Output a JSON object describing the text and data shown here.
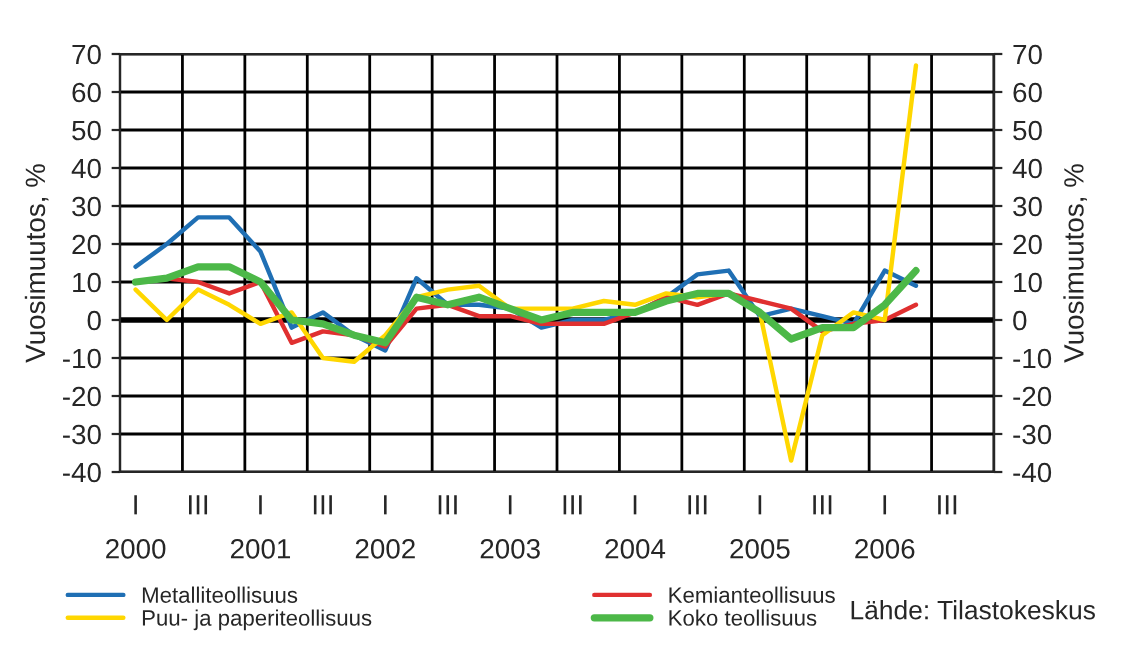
{
  "chart_data": {
    "type": "line",
    "ylabel": "Vuosimuutos, %",
    "y2label": "Vuosimuutos, %",
    "categories": [
      "I\n2000",
      null,
      "III",
      null,
      "I\n2001",
      null,
      "III",
      null,
      "I\n2002",
      null,
      "III",
      null,
      "I\n2003",
      null,
      "III",
      null,
      "I\n2004",
      null,
      "III",
      null,
      "I\n2005",
      null,
      "III",
      null,
      "I\n2006",
      null,
      "III",
      null
    ],
    "series": [
      {
        "name": "Metalliteollisuus",
        "color": "#1f6fb4",
        "values": [
          14,
          20,
          27,
          27,
          18,
          -2,
          2,
          -4,
          -8,
          11,
          4,
          4,
          3,
          -2,
          0,
          0,
          2,
          6,
          12,
          13,
          1,
          3,
          1,
          -1,
          13,
          9,
          null,
          null
        ]
      },
      {
        "name": "Kemianteollisuus",
        "color": "#e03030",
        "values": [
          10,
          11,
          10,
          7,
          10,
          -6,
          -3,
          -4,
          -7,
          3,
          4,
          1,
          1,
          -1,
          -1,
          -1,
          2,
          6,
          4,
          7,
          5,
          3,
          -3,
          -1,
          0,
          4,
          null,
          null
        ]
      },
      {
        "name": "Puu- ja paperiteollisuus",
        "color": "#ffd700",
        "values": [
          8,
          0,
          8,
          4,
          -1,
          2,
          -10,
          -11,
          -4,
          6,
          8,
          9,
          3,
          3,
          3,
          5,
          4,
          7,
          6,
          7,
          2,
          -37,
          -4,
          2,
          0,
          67,
          null,
          null
        ]
      },
      {
        "name": "Koko teollisuus",
        "color": "#4cb848",
        "values": [
          10,
          11,
          14,
          14,
          10,
          0,
          -1,
          -4,
          -6,
          6,
          4,
          6,
          3,
          0,
          2,
          2,
          2,
          5,
          7,
          7,
          2,
          -5,
          -2,
          -2,
          4,
          13,
          null,
          null
        ]
      }
    ],
    "ylim": [
      -40,
      70
    ],
    "yticks": [
      -40,
      -30,
      -20,
      -10,
      0,
      10,
      20,
      30,
      40,
      50,
      60,
      70
    ],
    "y2lim": [
      -40,
      70
    ],
    "y2ticks": [
      -40,
      -30,
      -20,
      -10,
      0,
      10,
      20,
      30,
      40,
      50,
      60,
      70
    ],
    "ref_lines": [
      {
        "axis": "y",
        "value": 0,
        "color": "#000000"
      }
    ],
    "grid": true,
    "legend": "bottom",
    "marker": "none",
    "line_style": "solid",
    "annotations": [
      "Lähde: Tilastokeskus"
    ]
  }
}
